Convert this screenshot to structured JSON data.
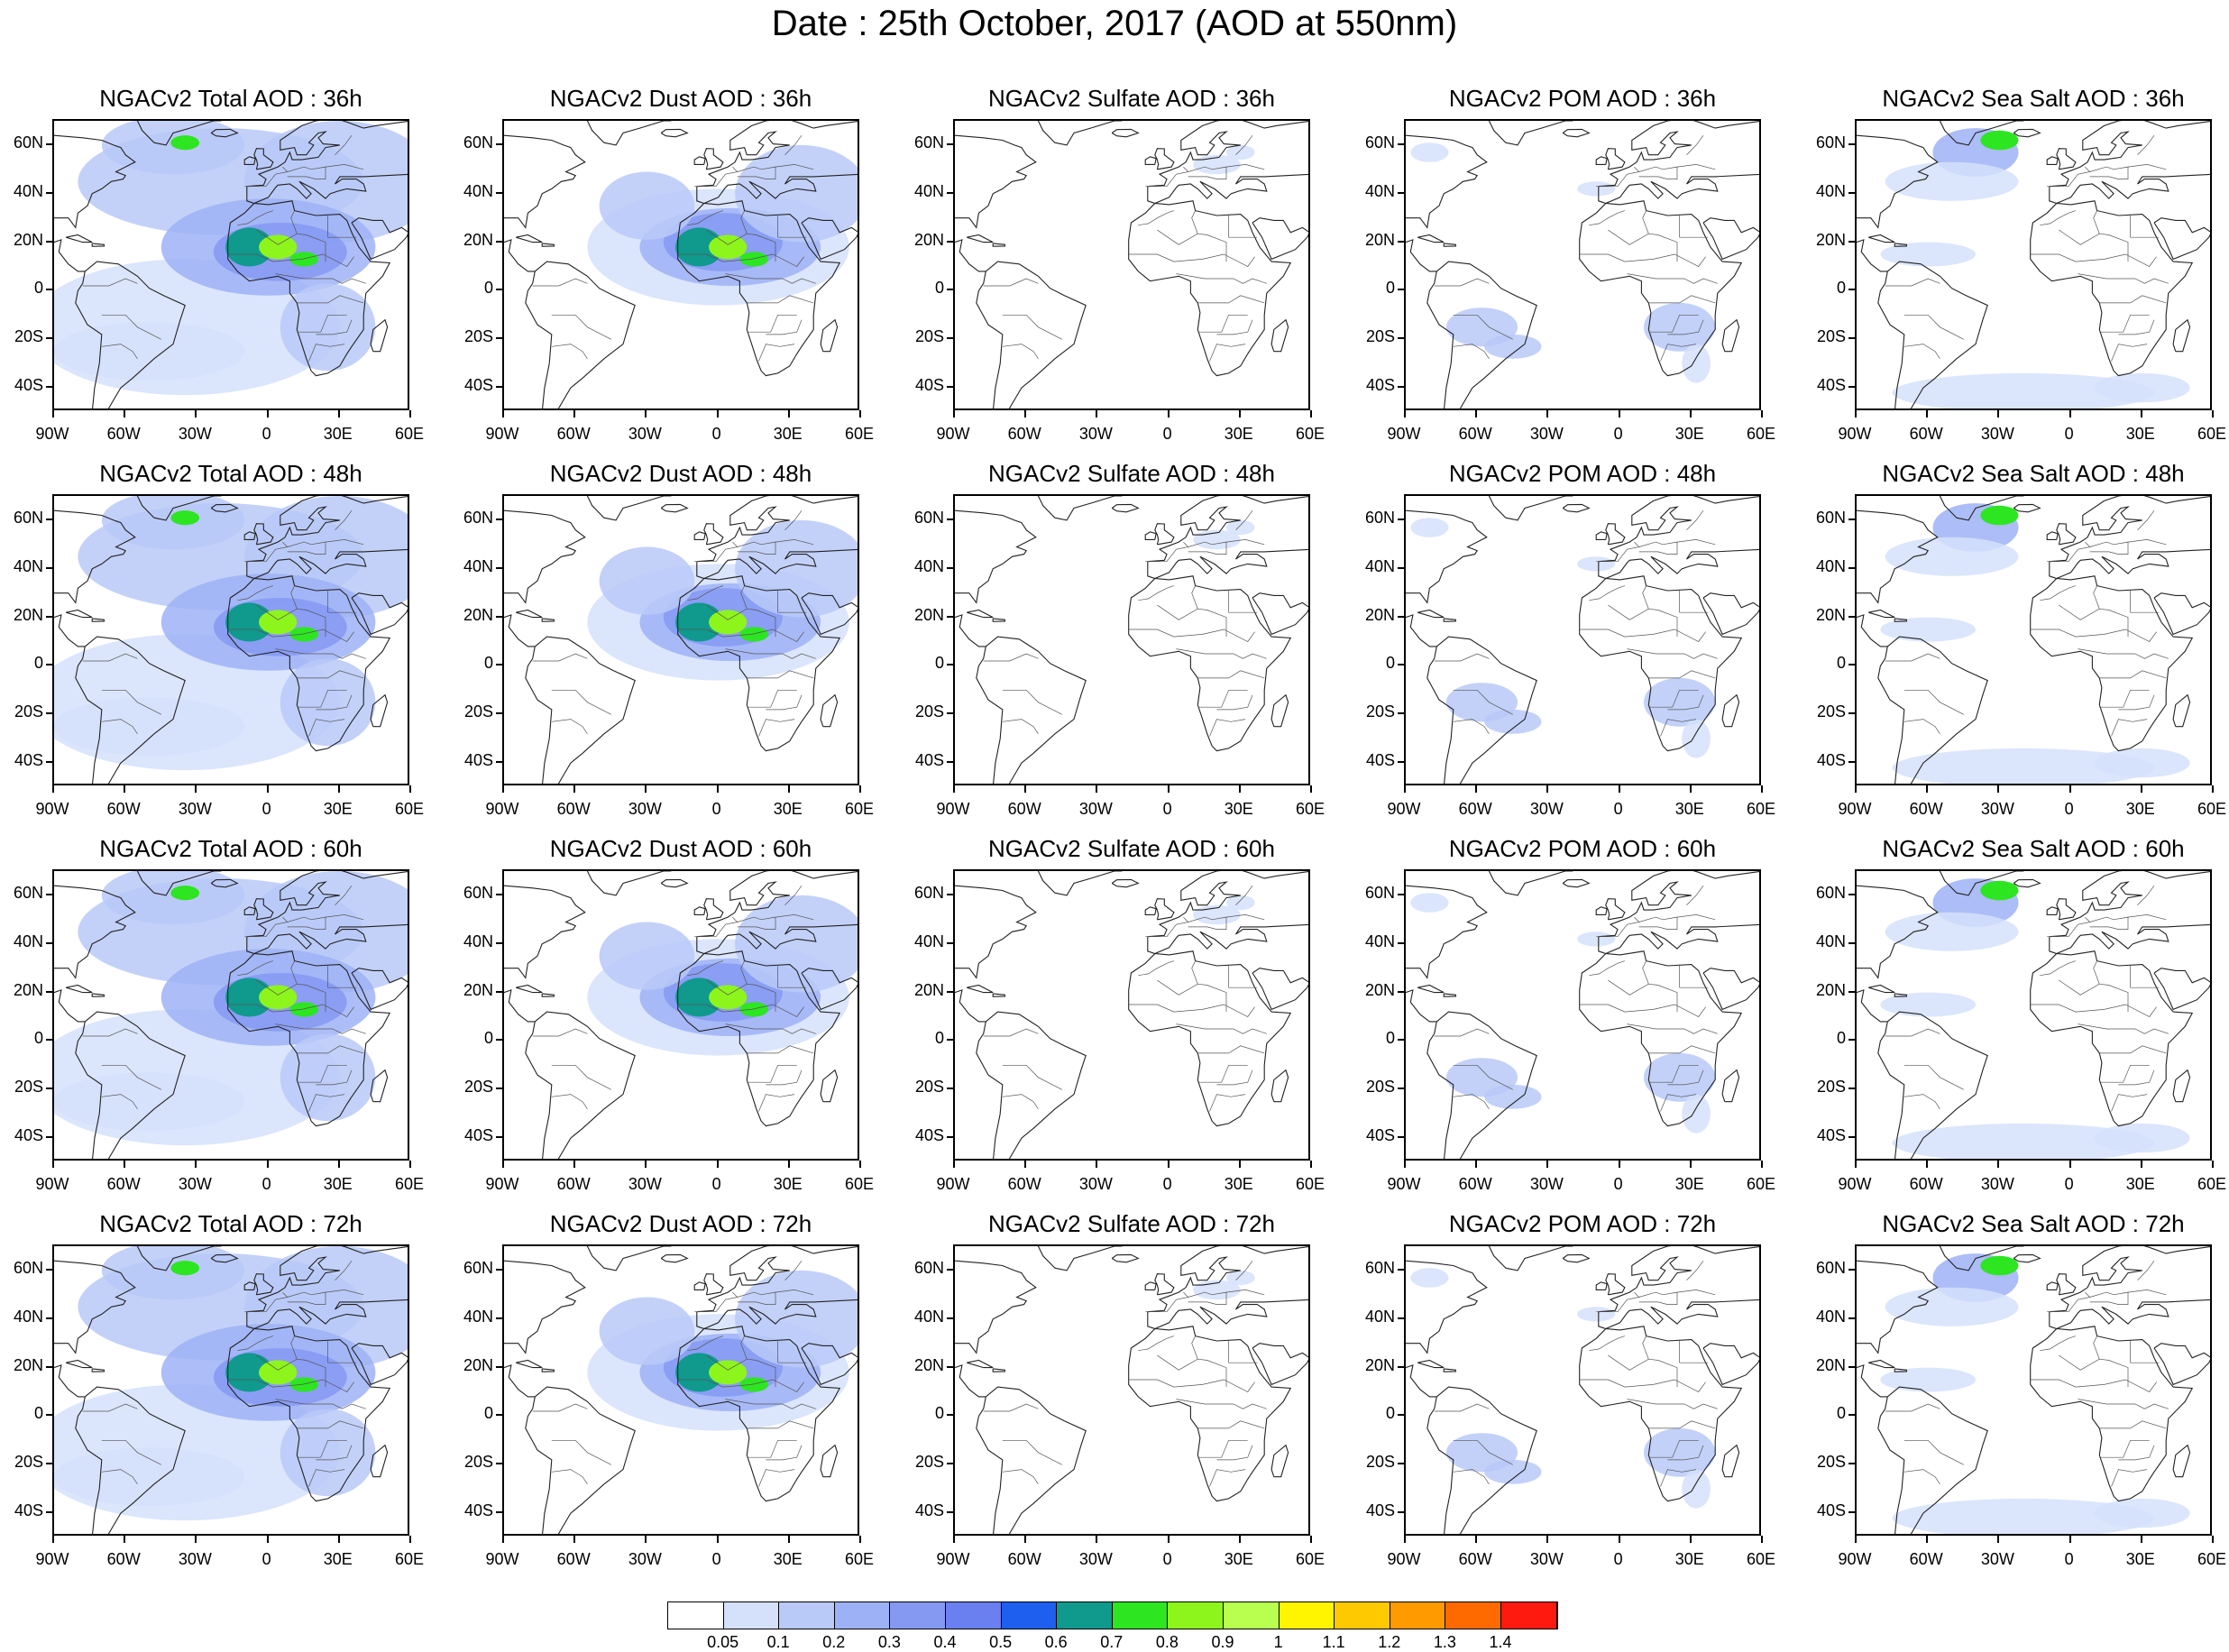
{
  "title": "Date : 25th October, 2017 (AOD at 550nm)",
  "rows": [
    {
      "hour": "36h",
      "titles": [
        "NGACv2 Total AOD : 36h",
        "NGACv2 Dust AOD : 36h",
        "NGACv2 Sulfate AOD : 36h",
        "NGACv2 POM AOD : 36h",
        "NGACv2 Sea Salt AOD : 36h"
      ]
    },
    {
      "hour": "48h",
      "titles": [
        "NGACv2 Total AOD : 48h",
        "NGACv2 Dust AOD : 48h",
        "NGACv2 Sulfate AOD : 48h",
        "NGACv2 POM AOD : 48h",
        "NGACv2 Sea Salt AOD : 48h"
      ]
    },
    {
      "hour": "60h",
      "titles": [
        "NGACv2 Total AOD : 60h",
        "NGACv2 Dust AOD : 60h",
        "NGACv2 Sulfate AOD : 60h",
        "NGACv2 POM AOD : 60h",
        "NGACv2 Sea Salt AOD : 60h"
      ]
    },
    {
      "hour": "72h",
      "titles": [
        "NGACv2 Total AOD : 72h",
        "NGACv2 Dust AOD : 72h",
        "NGACv2 Sulfate AOD : 72h",
        "NGACv2 POM AOD : 72h",
        "NGACv2 Sea Salt  AOD : 72h"
      ]
    }
  ],
  "lat_labels": [
    "60N",
    "40N",
    "20N",
    "0",
    "20S",
    "40S"
  ],
  "lon_labels": [
    "90W",
    "60W",
    "30W",
    "0",
    "30E",
    "60E"
  ],
  "colorbar": {
    "colors": [
      "#ffffff",
      "#d5e0fb",
      "#b9c9f8",
      "#9db2f6",
      "#8599f3",
      "#6a7ff0",
      "#1f5ff0",
      "#0f9a8d",
      "#2de521",
      "#8ef51c",
      "#b8ff50",
      "#fff500",
      "#ffc900",
      "#ff9a00",
      "#ff6a00",
      "#ff1a10"
    ],
    "labels": [
      "0.05",
      "0.1",
      "0.2",
      "0.3",
      "0.4",
      "0.5",
      "0.6",
      "0.7",
      "0.8",
      "0.9",
      "1",
      "1.1",
      "1.2",
      "1.3",
      "1.4"
    ]
  }
}
